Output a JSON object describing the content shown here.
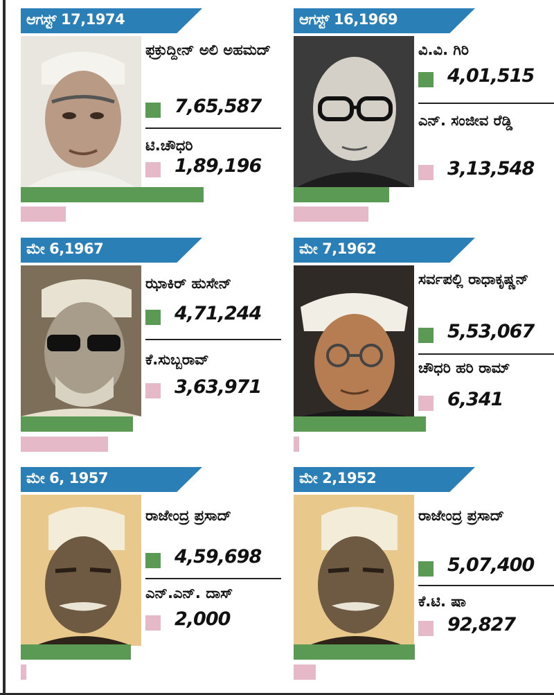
{
  "chart_data": [
    {
      "type": "bar",
      "date": "ಆಗಸ್ಟ್ 17,1974",
      "winner": {
        "name": "ಫಕ್ರುದ್ದೀನ್ ಅಲಿ ಅಹಮದ್",
        "votes_label": "7,65,587",
        "value": 765587
      },
      "loser": {
        "name": "ಟಿ.ಚೌಧರಿ",
        "votes_label": "1,89,196",
        "value": 189196
      }
    },
    {
      "type": "bar",
      "date": "ಆಗಸ್ಟ್ 16,1969",
      "winner": {
        "name": "ವಿ.ವಿ. ಗಿರಿ",
        "votes_label": "4,01,515",
        "value": 401515
      },
      "loser": {
        "name": "ಎನ್. ಸಂಜೀವ ರೆಡ್ಡಿ",
        "votes_label": "3,13,548",
        "value": 313548
      }
    },
    {
      "type": "bar",
      "date": "ಮೇ 6,1967",
      "winner": {
        "name": "ಝಾಕಿರ್ ಹುಸೇನ್",
        "votes_label": "4,71,244",
        "value": 471244
      },
      "loser": {
        "name": "ಕೆ.ಸುಬ್ಬರಾವ್",
        "votes_label": "3,63,971",
        "value": 363971
      }
    },
    {
      "type": "bar",
      "date": "ಮೇ 7,1962",
      "winner": {
        "name": "ಸರ್ವಪಲ್ಲಿ ರಾಧಾಕೃಷ್ಣನ್",
        "votes_label": "5,53,067",
        "value": 553067
      },
      "loser": {
        "name": "ಚೌಧರಿ ಹರಿ ರಾಮ್",
        "votes_label": "6,341",
        "value": 6341
      }
    },
    {
      "type": "bar",
      "date": "ಮೇ 6, 1957",
      "winner": {
        "name": "ರಾಜೇಂದ್ರ ಪ್ರಸಾದ್",
        "votes_label": "4,59,698",
        "value": 459698
      },
      "loser": {
        "name": "ಎನ್.ಎನ್. ದಾಸ್",
        "votes_label": "2,000",
        "value": 2000
      }
    },
    {
      "type": "bar",
      "date": "ಮೇ 2,1952",
      "winner": {
        "name": "ರಾಜೇಂದ್ರ ಪ್ರಸಾದ್",
        "votes_label": "5,07,400",
        "value": 507400
      },
      "loser": {
        "name": "ಕೆ.ಟಿ. ಷಾ",
        "votes_label": "92,827",
        "value": 92827
      }
    }
  ],
  "colors": {
    "banner": "#2a80b6",
    "winner": "#5a9a55",
    "loser": "#e6b9c8"
  },
  "scale_max_votes": 870000
}
